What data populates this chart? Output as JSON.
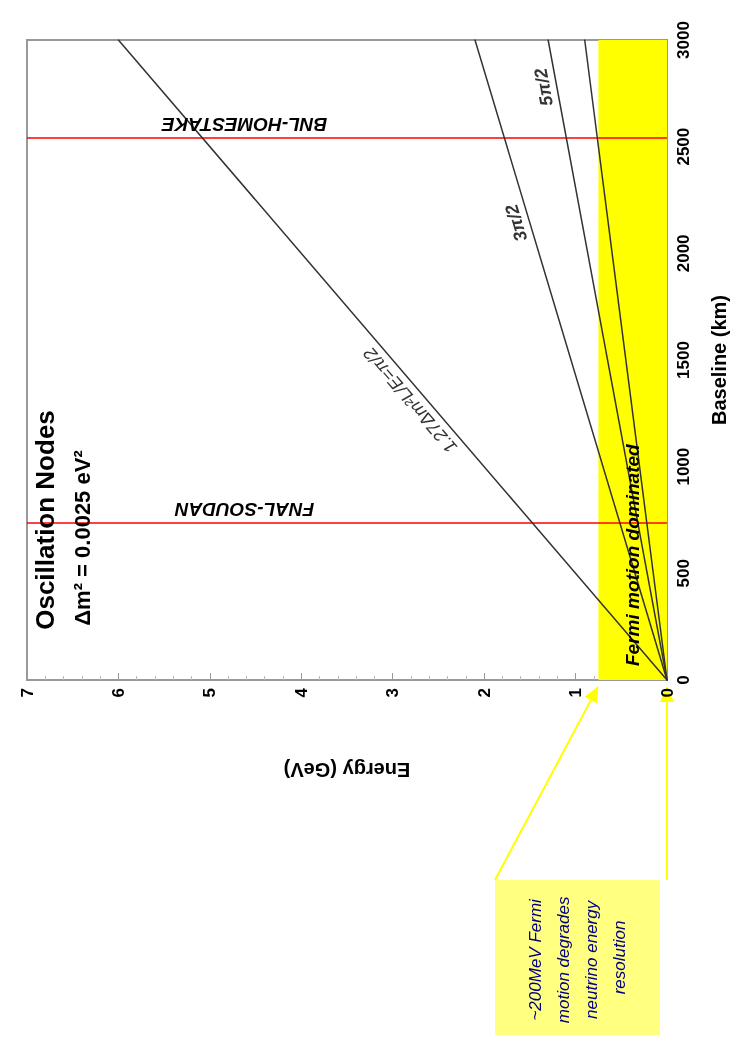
{
  "chart_data": {
    "type": "line",
    "title": "Oscillation Nodes",
    "subtitle": "Δm² = 0.0025 eV²",
    "xlabel": "Energy (GeV)",
    "ylabel": "Baseline (km)",
    "series": [
      {
        "name": "1.27Δm²L/E=π/2",
        "color": "#333333",
        "x": [
          0,
          6.0
        ],
        "values": [
          0,
          3000
        ]
      },
      {
        "name": "3π/2",
        "color": "#333333",
        "x": [
          0,
          2.1
        ],
        "values": [
          0,
          3000
        ]
      },
      {
        "name": "5π/2",
        "color": "#333333",
        "x": [
          0,
          1.3
        ],
        "values": [
          0,
          3000
        ]
      },
      {
        "color": "#333333",
        "x": [
          0,
          0.9
        ],
        "values": [
          0,
          3000
        ]
      }
    ],
    "xlim": [
      7,
      0
    ],
    "xticks": [
      7,
      6,
      5,
      4,
      3,
      2,
      1,
      0
    ],
    "ylim": [
      0,
      3000
    ],
    "yticks": [
      0,
      500,
      1000,
      1500,
      2000,
      2500,
      3000
    ],
    "ref_lines": [
      {
        "axis": "y",
        "value": 735,
        "label": "FNAL-SOUDAN",
        "color": "#ff0000"
      },
      {
        "axis": "y",
        "value": 2540,
        "label": "BNL-HOMESTAKE",
        "color": "#ff0000"
      }
    ],
    "bands": [
      {
        "axis": "x",
        "from": 0,
        "to": 0.75,
        "label": "Fermi motion dominated",
        "color": "#ffff00"
      }
    ],
    "annotations": [
      "~200MeV Fermi motion degrades neutrino energy resolution"
    ],
    "grid": false,
    "marker": "none",
    "line_style": "solid"
  }
}
